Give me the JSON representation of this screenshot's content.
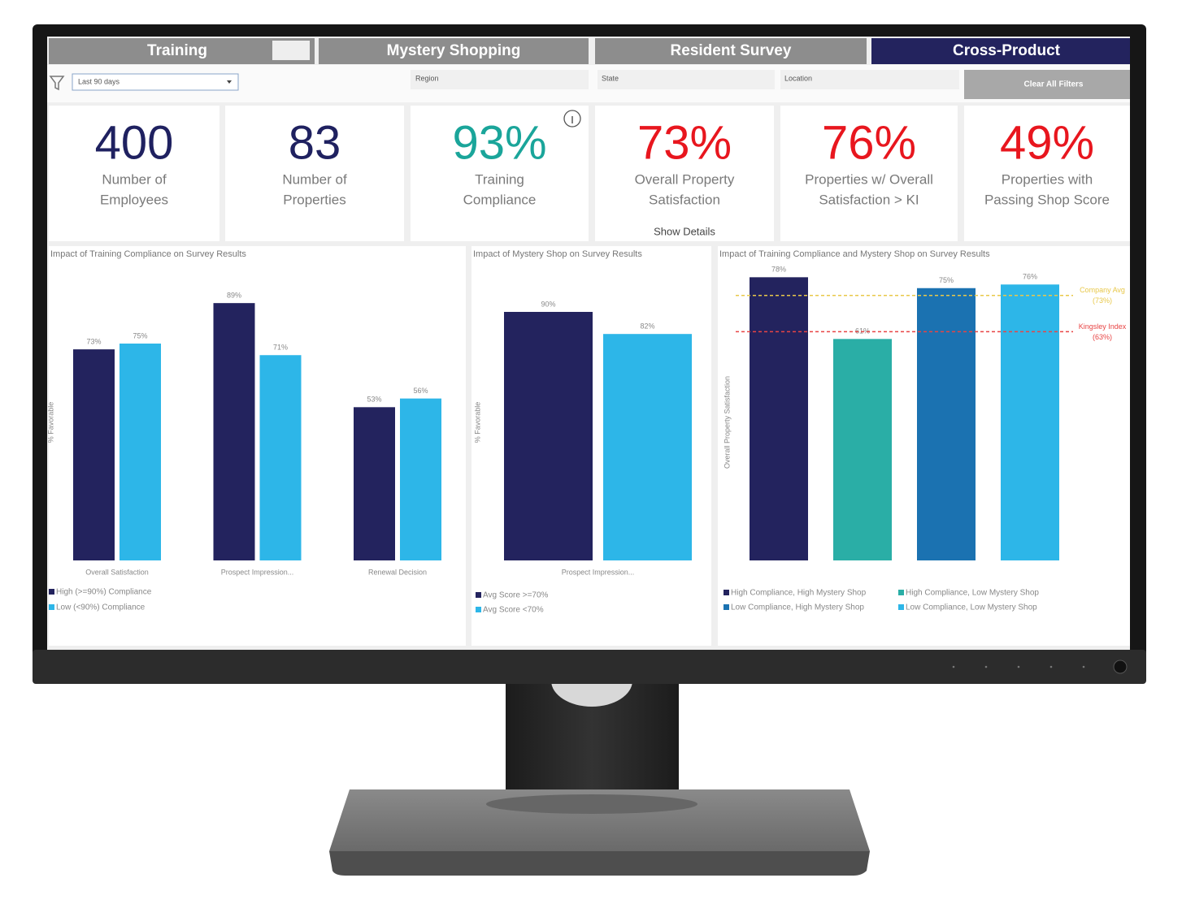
{
  "tabs": [
    "Training",
    "Mystery Shopping",
    "Resident Survey",
    "Cross-Product"
  ],
  "filters": {
    "period": "Last 90 days",
    "region": "Region",
    "state": "State",
    "location": "Location",
    "clear": "Clear All Filters"
  },
  "kpis": [
    {
      "value": "400",
      "label": [
        "Number of",
        "Employees"
      ],
      "color": "#1f2160"
    },
    {
      "value": "83",
      "label": [
        "Number of",
        "Properties"
      ],
      "color": "#1f2160"
    },
    {
      "value": "93%",
      "label": [
        "Training",
        "Compliance"
      ],
      "color": "#1aa59a"
    },
    {
      "value": "73%",
      "label": [
        "Overall Property",
        "Satisfaction"
      ],
      "color": "#e8161e",
      "link": "Show Details"
    },
    {
      "value": "76%",
      "label": [
        "Properties w/ Overall",
        "Satisfaction > KI"
      ],
      "color": "#e8161e"
    },
    {
      "value": "49%",
      "label": [
        "Properties with",
        "Passing Shop Score"
      ],
      "color": "#e8161e"
    }
  ],
  "charts": [
    {
      "type": "bar",
      "title": "Impact of Training Compliance on Survey Results",
      "y_label": "% Favorable",
      "categories": [
        "Overall Satisfaction",
        "Prospect Impression...",
        "Renewal Decision"
      ],
      "ylim": [
        0,
        100
      ],
      "series": [
        {
          "name": "High (>=90%) Compliance",
          "color": "#23235e",
          "values": [
            73,
            89,
            53
          ],
          "value_labels": [
            "73%",
            "89%",
            "53%"
          ]
        },
        {
          "name": "Low (<90%) Compliance",
          "color": "#2db6e8",
          "values": [
            75,
            71,
            56
          ],
          "value_labels": [
            "75%",
            "71%",
            "56%"
          ]
        }
      ]
    },
    {
      "type": "bar",
      "title": "Impact of Mystery Shop on Survey Results",
      "y_label": "% Favorable",
      "categories": [
        "Prospect Impression..."
      ],
      "ylim": [
        0,
        100
      ],
      "series": [
        {
          "name": "Avg Score >=70%",
          "color": "#23235e",
          "values": [
            90
          ],
          "value_labels": [
            "90%"
          ]
        },
        {
          "name": "Avg Score <70%",
          "color": "#2db6e8",
          "values": [
            82
          ],
          "value_labels": [
            "82%"
          ]
        }
      ]
    },
    {
      "type": "bar",
      "title": "Impact of Training Compliance and Mystery Shop on Survey Results",
      "y_label": "Overall Property Satisfaction",
      "categories": [
        null
      ],
      "ylim": [
        0,
        100
      ],
      "series": [
        {
          "name": "High Compliance, High Mystery Shop",
          "color": "#23235e",
          "values": [
            78
          ],
          "value_labels": [
            "78%"
          ]
        },
        {
          "name": "High Compliance, Low Mystery Shop",
          "color": "#2aaea6",
          "values": [
            61
          ],
          "value_labels": [
            "61%"
          ]
        },
        {
          "name": "Low Compliance, High Mystery Shop",
          "color": "#1b72b1",
          "values": [
            75
          ],
          "value_labels": [
            "75%"
          ]
        },
        {
          "name": "Low Compliance, Low Mystery Shop",
          "color": "#2db6e8",
          "values": [
            76
          ],
          "value_labels": [
            "76%"
          ]
        }
      ],
      "reference_lines": [
        {
          "name": "Company Avg",
          "value": 73,
          "value_label": "(73%)",
          "color": "#e8c84a"
        },
        {
          "name": "Kingsley Index",
          "value": 63,
          "value_label": "(63%)",
          "color": "#e84444"
        }
      ]
    }
  ]
}
